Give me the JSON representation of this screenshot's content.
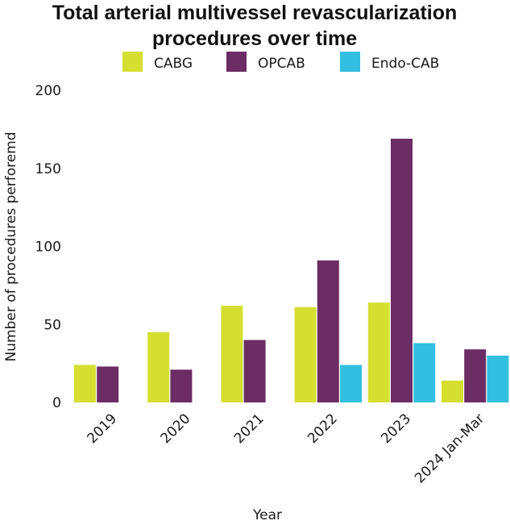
{
  "chart_data": {
    "type": "bar",
    "title_lines": [
      "Total arterial multivessel revascularization",
      "procedures over time"
    ],
    "xlabel": "Year",
    "ylabel": "Number of procedures perforemd",
    "ylim": [
      0,
      200
    ],
    "yticks": [
      0,
      50,
      100,
      150,
      200
    ],
    "categories": [
      "2019",
      "2020",
      "2021",
      "2022",
      "2023",
      "2024 Jan-Mar"
    ],
    "legend_position": "top",
    "series": [
      {
        "name": "CABG",
        "color": "#d4df2f",
        "values": [
          24,
          45,
          62,
          61,
          64,
          14
        ]
      },
      {
        "name": "OPCAB",
        "color": "#6b2d63",
        "values": [
          23,
          21,
          40,
          91,
          169,
          34
        ]
      },
      {
        "name": "Endo-CAB",
        "color": "#33bfdf",
        "values": [
          null,
          null,
          null,
          24,
          38,
          30
        ]
      }
    ]
  }
}
